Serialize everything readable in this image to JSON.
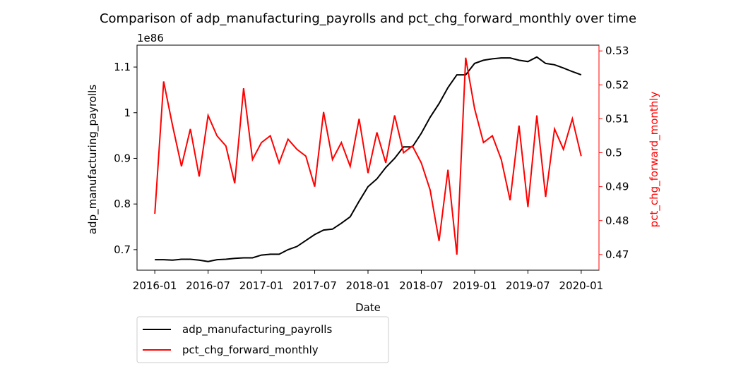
{
  "chart_data": {
    "type": "line",
    "title": "Comparison of adp_manufacturing_payrolls and pct_chg_forward_monthly over time",
    "x_label": "Date",
    "y_label": "adp_manufacturing_payrolls",
    "y2_label": "pct_chg_forward_monthly",
    "y_offset_label": "1e86",
    "x": [
      "2016-01",
      "2016-02",
      "2016-03",
      "2016-04",
      "2016-05",
      "2016-06",
      "2016-07",
      "2016-08",
      "2016-09",
      "2016-10",
      "2016-11",
      "2016-12",
      "2017-01",
      "2017-02",
      "2017-03",
      "2017-04",
      "2017-05",
      "2017-06",
      "2017-07",
      "2017-08",
      "2017-09",
      "2017-10",
      "2017-11",
      "2017-12",
      "2018-01",
      "2018-02",
      "2018-03",
      "2018-04",
      "2018-05",
      "2018-06",
      "2018-07",
      "2018-08",
      "2018-09",
      "2018-10",
      "2018-11",
      "2018-12",
      "2019-01",
      "2019-02",
      "2019-03",
      "2019-04",
      "2019-05",
      "2019-06",
      "2019-07",
      "2019-08",
      "2019-09",
      "2019-10",
      "2019-11",
      "2019-12",
      "2020-01"
    ],
    "series": [
      {
        "name": "adp_manufacturing_payrolls",
        "color": "#000000",
        "axis": "y",
        "values": [
          0.678,
          0.678,
          0.677,
          0.679,
          0.679,
          0.677,
          0.674,
          0.678,
          0.679,
          0.681,
          0.682,
          0.682,
          0.688,
          0.69,
          0.69,
          0.7,
          0.707,
          0.72,
          0.733,
          0.743,
          0.745,
          0.758,
          0.772,
          0.806,
          0.838,
          0.855,
          0.88,
          0.9,
          0.925,
          0.925,
          0.955,
          0.99,
          1.02,
          1.055,
          1.083,
          1.083,
          1.108,
          1.115,
          1.118,
          1.12,
          1.12,
          1.115,
          1.112,
          1.122,
          1.108,
          1.105,
          1.098,
          1.09,
          1.083
        ]
      },
      {
        "name": "pct_chg_forward_monthly",
        "color": "#ff0000",
        "axis": "y2",
        "values": [
          0.482,
          0.521,
          0.508,
          0.496,
          0.507,
          0.493,
          0.511,
          0.505,
          0.502,
          0.491,
          0.519,
          0.498,
          0.503,
          0.505,
          0.497,
          0.504,
          0.501,
          0.499,
          0.49,
          0.512,
          0.498,
          0.503,
          0.496,
          0.51,
          0.494,
          0.506,
          0.497,
          0.511,
          0.5,
          0.502,
          0.497,
          0.489,
          0.474,
          0.495,
          0.47,
          0.528,
          0.513,
          0.503,
          0.505,
          0.498,
          0.486,
          0.508,
          0.484,
          0.511,
          0.487,
          0.507,
          0.501,
          0.51,
          0.499
        ]
      }
    ],
    "xlim": [
      "2015-11",
      "2020-03"
    ],
    "xticks": [
      "2016-01",
      "2016-07",
      "2017-01",
      "2017-07",
      "2018-01",
      "2018-07",
      "2019-01",
      "2019-07",
      "2020-01"
    ],
    "ylim": [
      0.655,
      1.148
    ],
    "yticks": [
      0.7,
      0.8,
      0.9,
      1.0,
      1.1
    ],
    "y2lim": [
      0.4654,
      0.5317
    ],
    "y2ticks": [
      0.47,
      0.48,
      0.49,
      0.5,
      0.51,
      0.52,
      0.53
    ],
    "y2_color": "#ff0000",
    "legend": "lower left outside"
  }
}
